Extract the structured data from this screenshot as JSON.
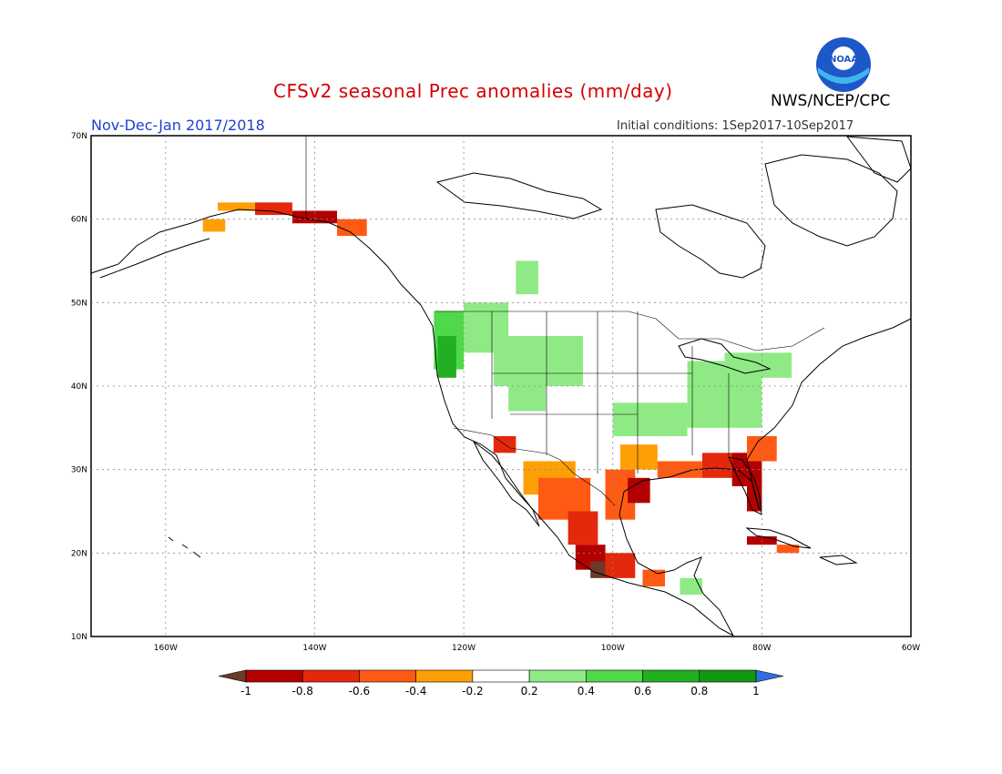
{
  "header": {
    "title": "CFSv2 seasonal Prec anomalies (mm/day)",
    "agency": "NWS/NCEP/CPC",
    "season": "Nov-Dec-Jan 2017/2018",
    "initial_conditions": "Initial conditions: 1Sep2017-10Sep2017",
    "logo_text": "NOAA"
  },
  "map": {
    "lat_ticks": [
      "70N",
      "60N",
      "50N",
      "40N",
      "30N",
      "20N",
      "10N"
    ],
    "lon_ticks": [
      "160W",
      "140W",
      "120W",
      "100W",
      "80W",
      "60W"
    ],
    "lon_range": [
      -170,
      -60
    ],
    "lat_range": [
      10,
      70
    ],
    "gridlines": "dotted"
  },
  "colorbar": {
    "labels": [
      "-1",
      "-0.8",
      "-0.6",
      "-0.4",
      "-0.2",
      "0.2",
      "0.4",
      "0.6",
      "0.8",
      "1"
    ],
    "colors": [
      "#6b3a2a",
      "#b30000",
      "#e3280b",
      "#ff5a14",
      "#ff9f06",
      "#ffffff",
      "#8fea86",
      "#4fd94a",
      "#22b022",
      "#119a11",
      "#2f6fe0"
    ]
  }
}
